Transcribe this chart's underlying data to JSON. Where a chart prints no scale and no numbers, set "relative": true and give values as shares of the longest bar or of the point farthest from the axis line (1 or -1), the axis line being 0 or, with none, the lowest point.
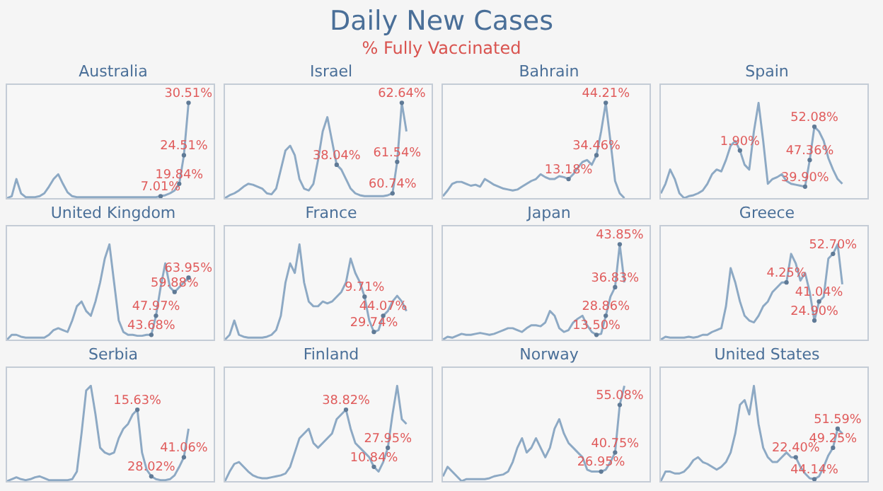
{
  "chart_data": [
    {
      "type": "other",
      "title": "Daily New Cases",
      "subtitle": "% Fully Vaccinated"
    },
    {
      "type": "line",
      "title": "Australia",
      "relative": true,
      "categories": [
        null,
        null,
        null,
        null,
        null,
        null,
        null,
        null,
        null,
        null,
        null,
        null,
        null,
        null,
        null,
        null,
        null,
        null,
        null,
        null,
        null,
        null,
        null,
        null,
        null,
        null,
        null,
        null,
        null,
        null,
        null,
        null,
        null,
        null,
        null,
        null,
        null,
        null,
        null,
        null
      ],
      "series": [
        {
          "color": "#8da9c4",
          "values": [
            0,
            0.02,
            0.2,
            0.05,
            0.01,
            0.01,
            0.01,
            0.02,
            0.05,
            0.12,
            0.2,
            0.25,
            0.15,
            0.06,
            0.02,
            0.01,
            0.01,
            0.01,
            0.01,
            0.01,
            0.01,
            0.01,
            0.01,
            0.01,
            0.01,
            0.01,
            0.01,
            0.01,
            0.01,
            0.01,
            0.01,
            0.01,
            0.01,
            0.02,
            0.03,
            0.05,
            0.08,
            0.15,
            0.45,
            1
          ]
        }
      ],
      "annotations": [
        {
          "text": "7.01%",
          "y": 0.02
        },
        {
          "text": "19.84%",
          "y": 0.15
        },
        {
          "text": "24.51%",
          "y": 0.45
        },
        {
          "text": "30.51%",
          "y": 1
        }
      ]
    },
    {
      "type": "line",
      "title": "Israel",
      "relative": true,
      "categories": [
        null,
        null,
        null,
        null,
        null,
        null,
        null,
        null,
        null,
        null,
        null,
        null,
        null,
        null,
        null,
        null,
        null,
        null,
        null,
        null,
        null,
        null,
        null,
        null,
        null,
        null,
        null,
        null,
        null,
        null,
        null,
        null,
        null,
        null,
        null,
        null,
        null,
        null,
        null,
        null
      ],
      "series": [
        {
          "color": "#8da9c4",
          "values": [
            0,
            0.03,
            0.05,
            0.08,
            0.12,
            0.15,
            0.14,
            0.12,
            0.1,
            0.05,
            0.04,
            0.1,
            0.3,
            0.5,
            0.55,
            0.45,
            0.2,
            0.1,
            0.08,
            0.15,
            0.4,
            0.7,
            0.85,
            0.6,
            0.35,
            0.3,
            0.2,
            0.1,
            0.05,
            0.03,
            0.02,
            0.02,
            0.02,
            0.02,
            0.02,
            0.03,
            0.05,
            0.38,
            1,
            0.7
          ]
        }
      ],
      "annotations": [
        {
          "text": "38.04%",
          "y": 0.35
        },
        {
          "text": "60.74%",
          "y": 0.05
        },
        {
          "text": "61.54%",
          "y": 0.38
        },
        {
          "text": "62.64%",
          "y": 1
        }
      ]
    },
    {
      "type": "line",
      "title": "Bahrain",
      "relative": true,
      "categories": [
        null,
        null,
        null,
        null,
        null,
        null,
        null,
        null,
        null,
        null,
        null,
        null,
        null,
        null,
        null,
        null,
        null,
        null,
        null,
        null,
        null,
        null,
        null,
        null,
        null,
        null,
        null,
        null,
        null,
        null,
        null,
        null,
        null,
        null,
        null,
        null,
        null,
        null,
        null,
        null
      ],
      "series": [
        {
          "color": "#8da9c4",
          "values": [
            0.02,
            0.08,
            0.15,
            0.17,
            0.17,
            0.15,
            0.13,
            0.14,
            0.12,
            0.2,
            0.17,
            0.14,
            0.12,
            0.1,
            0.09,
            0.08,
            0.09,
            0.12,
            0.15,
            0.18,
            0.2,
            0.25,
            0.22,
            0.2,
            0.2,
            0.23,
            0.22,
            0.2,
            0.25,
            0.32,
            0.38,
            0.4,
            0.35,
            0.45,
            0.7,
            1,
            0.6,
            0.18,
            0.05,
            0
          ]
        }
      ],
      "annotations": [
        {
          "text": "13.18%",
          "y": 0.2
        },
        {
          "text": "34.46%",
          "y": 0.45
        },
        {
          "text": "44.21%",
          "y": 1
        }
      ]
    },
    {
      "type": "line",
      "title": "Spain",
      "relative": true,
      "categories": [
        null,
        null,
        null,
        null,
        null,
        null,
        null,
        null,
        null,
        null,
        null,
        null,
        null,
        null,
        null,
        null,
        null,
        null,
        null,
        null,
        null,
        null,
        null,
        null,
        null,
        null,
        null,
        null,
        null,
        null,
        null,
        null,
        null,
        null,
        null,
        null,
        null,
        null,
        null,
        null
      ],
      "series": [
        {
          "color": "#8da9c4",
          "values": [
            0.05,
            0.15,
            0.3,
            0.2,
            0.05,
            0,
            0.02,
            0.03,
            0.05,
            0.08,
            0.15,
            0.25,
            0.3,
            0.28,
            0.4,
            0.55,
            0.6,
            0.5,
            0.35,
            0.3,
            0.7,
            1,
            0.6,
            0.15,
            0.2,
            0.22,
            0.25,
            0.18,
            0.15,
            0.14,
            0.13,
            0.12,
            0.4,
            0.75,
            0.7,
            0.6,
            0.42,
            0.3,
            0.2,
            0.15
          ]
        }
      ],
      "annotations": [
        {
          "text": "1.90%",
          "y": 0.5
        },
        {
          "text": "39.90%",
          "y": 0.12
        },
        {
          "text": "47.36%",
          "y": 0.4
        },
        {
          "text": "52.08%",
          "y": 0.75
        }
      ]
    },
    {
      "type": "line",
      "title": "United Kingdom",
      "relative": true,
      "categories": [
        null,
        null,
        null,
        null,
        null,
        null,
        null,
        null,
        null,
        null,
        null,
        null,
        null,
        null,
        null,
        null,
        null,
        null,
        null,
        null,
        null,
        null,
        null,
        null,
        null,
        null,
        null,
        null,
        null,
        null,
        null,
        null,
        null,
        null,
        null,
        null,
        null,
        null,
        null,
        null
      ],
      "series": [
        {
          "color": "#8da9c4",
          "values": [
            0,
            0.05,
            0.05,
            0.03,
            0.02,
            0.02,
            0.02,
            0.02,
            0.02,
            0.05,
            0.1,
            0.12,
            0.1,
            0.08,
            0.2,
            0.35,
            0.4,
            0.3,
            0.25,
            0.4,
            0.6,
            0.85,
            1,
            0.6,
            0.2,
            0.08,
            0.05,
            0.05,
            0.04,
            0.04,
            0.05,
            0.05,
            0.25,
            0.55,
            0.8,
            0.55,
            0.5,
            0.55,
            0.6,
            0.65
          ]
        }
      ],
      "annotations": [
        {
          "text": "43.68%",
          "y": 0.05
        },
        {
          "text": "47.97%",
          "y": 0.25
        },
        {
          "text": "59.88%",
          "y": 0.5
        },
        {
          "text": "63.95%",
          "y": 0.65
        }
      ]
    },
    {
      "type": "line",
      "title": "France",
      "relative": true,
      "categories": [
        null,
        null,
        null,
        null,
        null,
        null,
        null,
        null,
        null,
        null,
        null,
        null,
        null,
        null,
        null,
        null,
        null,
        null,
        null,
        null,
        null,
        null,
        null,
        null,
        null,
        null,
        null,
        null,
        null,
        null,
        null,
        null,
        null,
        null,
        null,
        null,
        null,
        null,
        null,
        null
      ],
      "series": [
        {
          "color": "#8da9c4",
          "values": [
            0,
            0.05,
            0.2,
            0.05,
            0.03,
            0.02,
            0.02,
            0.02,
            0.02,
            0.03,
            0.05,
            0.1,
            0.25,
            0.6,
            0.8,
            0.7,
            1,
            0.6,
            0.4,
            0.35,
            0.35,
            0.4,
            0.38,
            0.4,
            0.45,
            0.5,
            0.6,
            0.85,
            0.7,
            0.6,
            0.45,
            0.2,
            0.08,
            0.1,
            0.25,
            0.3,
            0.4,
            0.46,
            0.4,
            0.3
          ]
        }
      ],
      "annotations": [
        {
          "text": "9.71%",
          "y": 0.45
        },
        {
          "text": "29.74%",
          "y": 0.08
        },
        {
          "text": "44.07%",
          "y": 0.25
        }
      ]
    },
    {
      "type": "line",
      "title": "Japan",
      "relative": true,
      "categories": [
        null,
        null,
        null,
        null,
        null,
        null,
        null,
        null,
        null,
        null,
        null,
        null,
        null,
        null,
        null,
        null,
        null,
        null,
        null,
        null,
        null,
        null,
        null,
        null,
        null,
        null,
        null,
        null,
        null,
        null,
        null,
        null,
        null,
        null,
        null,
        null,
        null,
        null,
        null,
        null
      ],
      "series": [
        {
          "color": "#8da9c4",
          "values": [
            0,
            0.03,
            0.02,
            0.04,
            0.06,
            0.05,
            0.05,
            0.06,
            0.07,
            0.06,
            0.05,
            0.06,
            0.08,
            0.1,
            0.12,
            0.12,
            0.1,
            0.08,
            0.12,
            0.15,
            0.15,
            0.14,
            0.18,
            0.3,
            0.25,
            0.12,
            0.08,
            0.1,
            0.18,
            0.22,
            0.25,
            0.15,
            0.08,
            0.05,
            0.06,
            0.25,
            0.45,
            0.55,
            1,
            0.6
          ]
        }
      ],
      "annotations": [
        {
          "text": "13.50%",
          "y": 0.05
        },
        {
          "text": "28.86%",
          "y": 0.25
        },
        {
          "text": "36.83%",
          "y": 0.55
        },
        {
          "text": "43.85%",
          "y": 1
        }
      ]
    },
    {
      "type": "line",
      "title": "Greece",
      "relative": true,
      "categories": [
        null,
        null,
        null,
        null,
        null,
        null,
        null,
        null,
        null,
        null,
        null,
        null,
        null,
        null,
        null,
        null,
        null,
        null,
        null,
        null,
        null,
        null,
        null,
        null,
        null,
        null,
        null,
        null,
        null,
        null,
        null,
        null,
        null,
        null,
        null,
        null,
        null,
        null,
        null,
        null
      ],
      "series": [
        {
          "color": "#8da9c4",
          "values": [
            0,
            0.03,
            0.02,
            0.02,
            0.02,
            0.02,
            0.03,
            0.02,
            0.03,
            0.05,
            0.05,
            0.08,
            0.1,
            0.12,
            0.35,
            0.75,
            0.6,
            0.4,
            0.25,
            0.2,
            0.18,
            0.25,
            0.35,
            0.4,
            0.5,
            0.55,
            0.6,
            0.6,
            0.9,
            0.8,
            0.62,
            0.7,
            0.5,
            0.2,
            0.4,
            0.45,
            0.85,
            0.9,
            1,
            0.58
          ]
        }
      ],
      "annotations": [
        {
          "text": "4.25%",
          "y": 0.6
        },
        {
          "text": "24.90%",
          "y": 0.2
        },
        {
          "text": "41.04%",
          "y": 0.4
        },
        {
          "text": "52.70%",
          "y": 0.9
        }
      ]
    },
    {
      "type": "line",
      "title": "Serbia",
      "relative": true,
      "categories": [
        null,
        null,
        null,
        null,
        null,
        null,
        null,
        null,
        null,
        null,
        null,
        null,
        null,
        null,
        null,
        null,
        null,
        null,
        null,
        null,
        null,
        null,
        null,
        null,
        null,
        null,
        null,
        null,
        null,
        null,
        null,
        null,
        null,
        null,
        null,
        null,
        null,
        null,
        null,
        null
      ],
      "series": [
        {
          "color": "#8da9c4",
          "values": [
            0,
            0.02,
            0.04,
            0.02,
            0.01,
            0.02,
            0.04,
            0.05,
            0.03,
            0.01,
            0.01,
            0.01,
            0.01,
            0.01,
            0.02,
            0.1,
            0.5,
            0.95,
            1,
            0.7,
            0.35,
            0.3,
            0.28,
            0.3,
            0.45,
            0.55,
            0.6,
            0.7,
            0.75,
            0.3,
            0.12,
            0.05,
            0.02,
            0.01,
            0.01,
            0.02,
            0.06,
            0.15,
            0.25,
            0.55
          ]
        }
      ],
      "annotations": [
        {
          "text": "15.63%",
          "y": 0.75
        },
        {
          "text": "28.02%",
          "y": 0.05
        },
        {
          "text": "41.06%",
          "y": 0.25
        }
      ]
    },
    {
      "type": "line",
      "title": "Finland",
      "relative": true,
      "categories": [
        null,
        null,
        null,
        null,
        null,
        null,
        null,
        null,
        null,
        null,
        null,
        null,
        null,
        null,
        null,
        null,
        null,
        null,
        null,
        null,
        null,
        null,
        null,
        null,
        null,
        null,
        null,
        null,
        null,
        null,
        null,
        null,
        null,
        null,
        null,
        null,
        null,
        null,
        null,
        null
      ],
      "series": [
        {
          "color": "#8da9c4",
          "values": [
            0,
            0.1,
            0.18,
            0.2,
            0.15,
            0.1,
            0.06,
            0.04,
            0.03,
            0.03,
            0.04,
            0.05,
            0.06,
            0.08,
            0.15,
            0.3,
            0.45,
            0.5,
            0.55,
            0.4,
            0.35,
            0.4,
            0.45,
            0.5,
            0.65,
            0.7,
            0.75,
            0.55,
            0.4,
            0.35,
            0.3,
            0.25,
            0.15,
            0.1,
            0.2,
            0.35,
            0.7,
            1,
            0.65,
            0.6
          ]
        }
      ],
      "annotations": [
        {
          "text": "38.82%",
          "y": 0.75
        },
        {
          "text": "10.84%",
          "y": 0.15
        },
        {
          "text": "27.95%",
          "y": 0.35
        }
      ]
    },
    {
      "type": "line",
      "title": "Norway",
      "relative": true,
      "categories": [
        null,
        null,
        null,
        null,
        null,
        null,
        null,
        null,
        null,
        null,
        null,
        null,
        null,
        null,
        null,
        null,
        null,
        null,
        null,
        null,
        null,
        null,
        null,
        null,
        null,
        null,
        null,
        null,
        null,
        null,
        null,
        null,
        null,
        null,
        null,
        null,
        null,
        null,
        null,
        null
      ],
      "series": [
        {
          "color": "#8da9c4",
          "values": [
            0.05,
            0.15,
            0.1,
            0.05,
            0,
            0.02,
            0.02,
            0.02,
            0.02,
            0.02,
            0.03,
            0.05,
            0.06,
            0.07,
            0.1,
            0.2,
            0.35,
            0.45,
            0.3,
            0.35,
            0.45,
            0.35,
            0.25,
            0.35,
            0.55,
            0.65,
            0.5,
            0.4,
            0.35,
            0.3,
            0.25,
            0.12,
            0.1,
            0.1,
            0.1,
            0.12,
            0.2,
            0.3,
            0.8,
            1
          ]
        }
      ],
      "annotations": [
        {
          "text": "26.95%",
          "y": 0.1
        },
        {
          "text": "40.75%",
          "y": 0.3
        },
        {
          "text": "55.08%",
          "y": 0.8
        }
      ]
    },
    {
      "type": "line",
      "title": "United States",
      "relative": true,
      "categories": [
        null,
        null,
        null,
        null,
        null,
        null,
        null,
        null,
        null,
        null,
        null,
        null,
        null,
        null,
        null,
        null,
        null,
        null,
        null,
        null,
        null,
        null,
        null,
        null,
        null,
        null,
        null,
        null,
        null,
        null,
        null,
        null,
        null,
        null,
        null,
        null,
        null,
        null,
        null,
        null
      ],
      "series": [
        {
          "color": "#8da9c4",
          "values": [
            0,
            0.1,
            0.1,
            0.08,
            0.08,
            0.1,
            0.15,
            0.22,
            0.25,
            0.2,
            0.18,
            0.15,
            0.12,
            0.15,
            0.2,
            0.3,
            0.5,
            0.8,
            0.85,
            0.7,
            1,
            0.6,
            0.35,
            0.25,
            0.2,
            0.2,
            0.25,
            0.3,
            0.25,
            0.25,
            0.15,
            0.08,
            0.03,
            0.02,
            0.05,
            0.15,
            0.27,
            0.35,
            0.55,
            0.5
          ]
        }
      ],
      "annotations": [
        {
          "text": "22.40%",
          "y": 0.25
        },
        {
          "text": "44.14%",
          "y": 0.02
        },
        {
          "text": "49.25%",
          "y": 0.35
        },
        {
          "text": "51.59%",
          "y": 0.55
        }
      ]
    }
  ]
}
